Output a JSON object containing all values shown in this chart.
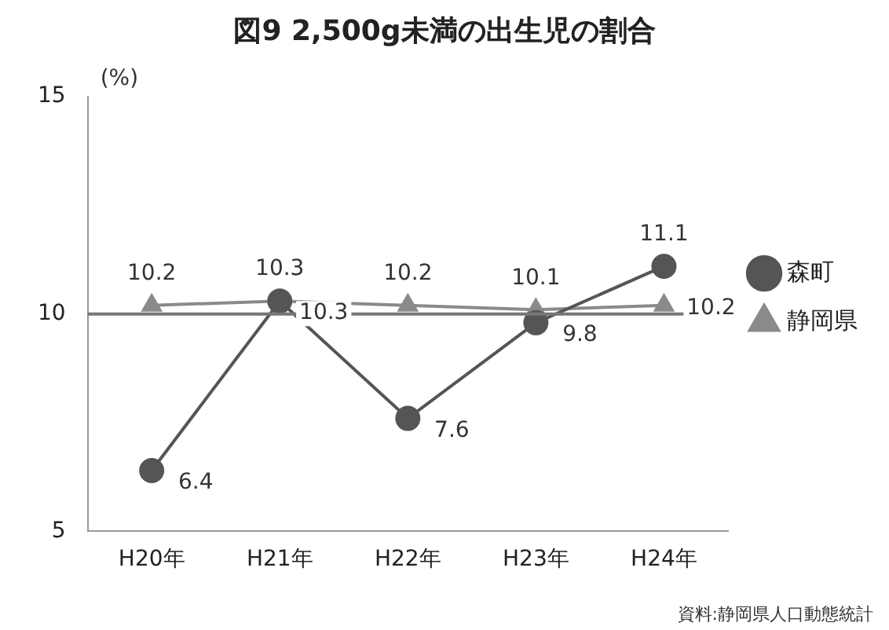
{
  "chart_data": {
    "type": "line",
    "title": "図9 2,500g未満の出生児の割合",
    "ylabel": "(%)",
    "categories": [
      "H20年",
      "H21年",
      "H22年",
      "H23年",
      "H24年"
    ],
    "series": [
      {
        "name": "森町",
        "color": "#555555",
        "marker": "circle",
        "values": [
          6.4,
          10.3,
          7.6,
          9.8,
          11.1
        ]
      },
      {
        "name": "静岡県",
        "color": "#8a8a8a",
        "marker": "triangle",
        "values": [
          10.2,
          10.3,
          10.2,
          10.1,
          10.2
        ]
      }
    ],
    "ylim": [
      5,
      15
    ],
    "yticks": [
      5,
      10,
      15
    ],
    "grid": false,
    "legend": "right",
    "data_labels": true,
    "ref_lines": [
      {
        "axis": "y",
        "value": 10,
        "color": "#777777"
      }
    ],
    "annotations": [
      "資料:静岡県人口動態統計"
    ]
  }
}
